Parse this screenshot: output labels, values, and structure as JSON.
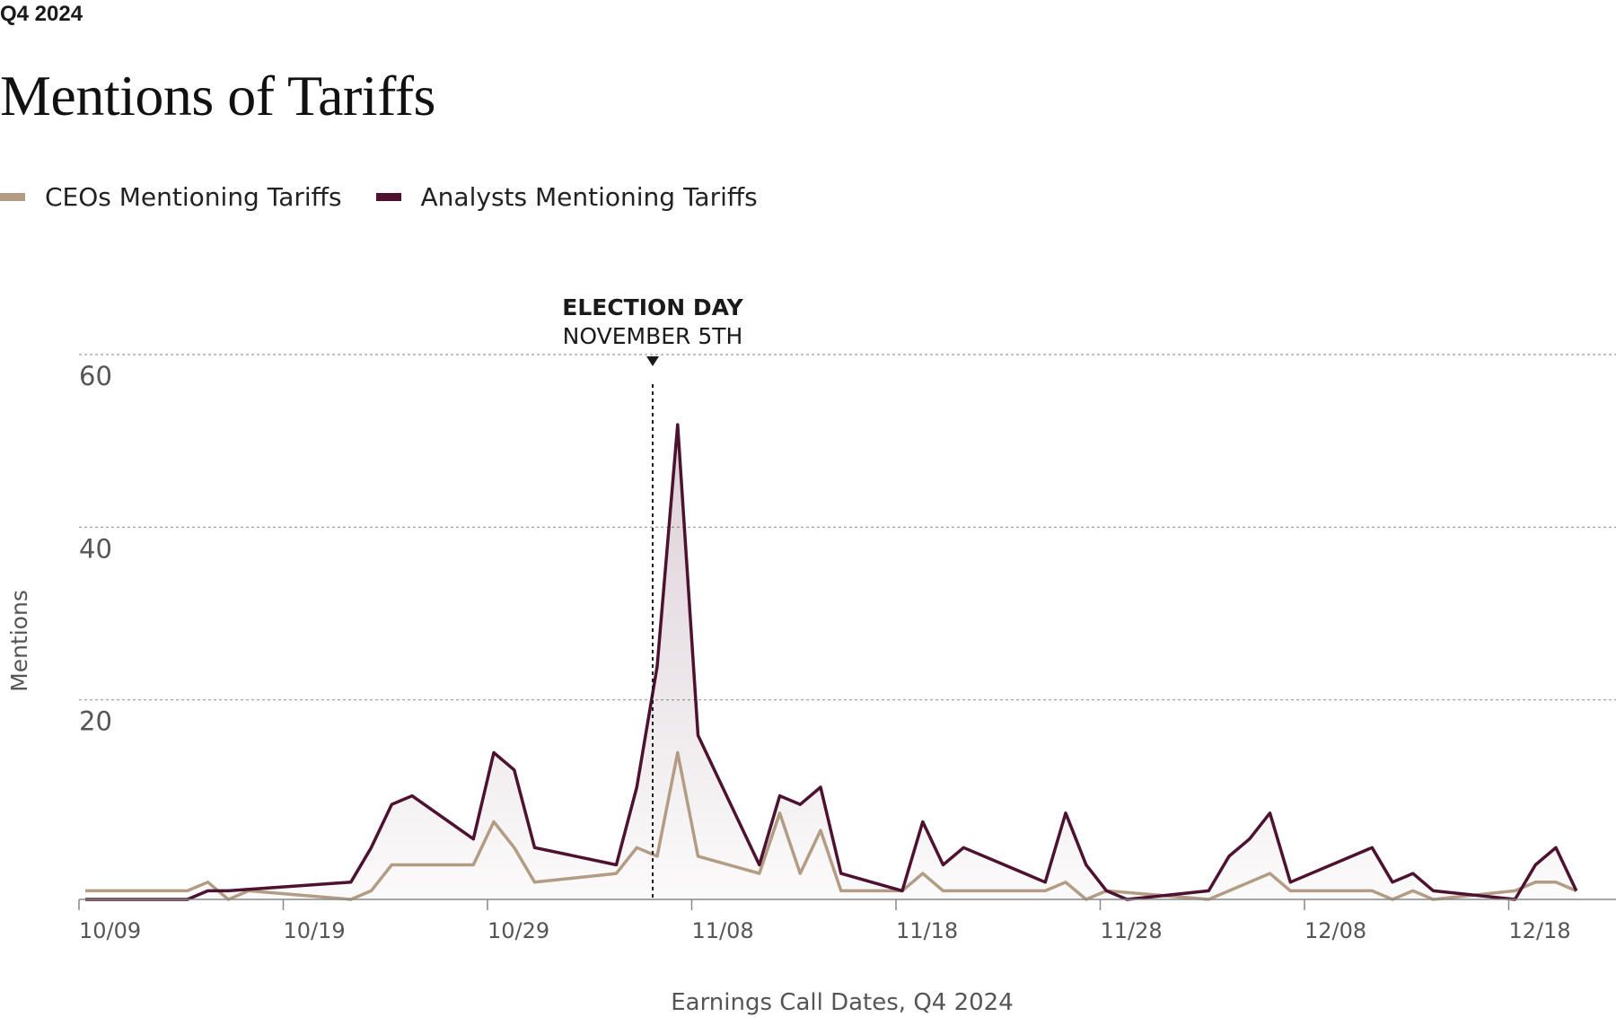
{
  "header": {
    "eyebrow": "Q4 2024",
    "title": "Mentions of Tariffs"
  },
  "legend": [
    {
      "label": "CEOs Mentioning Tariffs",
      "color": "#b39c84"
    },
    {
      "label": "Analysts Mentioning Tariffs",
      "color": "#4d1230"
    }
  ],
  "annotation": {
    "title": "ELECTION DAY",
    "subtitle": "NOVEMBER 5TH",
    "date": "2024-11-05"
  },
  "chart_data": {
    "type": "line",
    "xlabel": "Earnings Call Dates, Q4 2024",
    "ylabel": "Mentions",
    "ylim": [
      0,
      60
    ],
    "yticks": [
      20,
      40,
      60
    ],
    "xticks": [
      "10/09",
      "10/19",
      "10/29",
      "11/08",
      "11/18",
      "11/28",
      "12/08",
      "12/18"
    ],
    "grid": "horizontal dotted",
    "legend_position": "top-left",
    "series": [
      {
        "name": "Analysts Mentioning Tariffs",
        "color": "#4d1230",
        "x": [
          "2024-10-09",
          "2024-10-14",
          "2024-10-15",
          "2024-10-16",
          "2024-10-22",
          "2024-10-23",
          "2024-10-24",
          "2024-10-25",
          "2024-10-28",
          "2024-10-29",
          "2024-10-30",
          "2024-10-31",
          "2024-11-04",
          "2024-11-05",
          "2024-11-06",
          "2024-11-07",
          "2024-11-08",
          "2024-11-11",
          "2024-11-12",
          "2024-11-13",
          "2024-11-14",
          "2024-11-15",
          "2024-11-18",
          "2024-11-19",
          "2024-11-20",
          "2024-11-21",
          "2024-11-25",
          "2024-11-26",
          "2024-11-27",
          "2024-11-28",
          "2024-11-29",
          "2024-12-03",
          "2024-12-04",
          "2024-12-05",
          "2024-12-06",
          "2024-12-07",
          "2024-12-11",
          "2024-12-12",
          "2024-12-13",
          "2024-12-14",
          "2024-12-18",
          "2024-12-19",
          "2024-12-20",
          "2024-12-21"
        ],
        "y": [
          0,
          0,
          1,
          1,
          2,
          6,
          11,
          12,
          7,
          17,
          15,
          6,
          4,
          13,
          27,
          55,
          19,
          4,
          12,
          11,
          13,
          3,
          1,
          9,
          4,
          6,
          2,
          10,
          4,
          1,
          0,
          1,
          5,
          7,
          10,
          2,
          6,
          2,
          3,
          1,
          0,
          4,
          6,
          1
        ]
      },
      {
        "name": "CEOs Mentioning Tariffs",
        "color": "#b39c84",
        "x": [
          "2024-10-09",
          "2024-10-14",
          "2024-10-15",
          "2024-10-16",
          "2024-10-17",
          "2024-10-22",
          "2024-10-23",
          "2024-10-24",
          "2024-10-28",
          "2024-10-29",
          "2024-10-30",
          "2024-10-31",
          "2024-11-04",
          "2024-11-05",
          "2024-11-06",
          "2024-11-07",
          "2024-11-08",
          "2024-11-11",
          "2024-11-12",
          "2024-11-13",
          "2024-11-14",
          "2024-11-15",
          "2024-11-18",
          "2024-11-19",
          "2024-11-20",
          "2024-11-25",
          "2024-11-26",
          "2024-11-27",
          "2024-11-28",
          "2024-12-03",
          "2024-12-04",
          "2024-12-06",
          "2024-12-07",
          "2024-12-11",
          "2024-12-12",
          "2024-12-13",
          "2024-12-14",
          "2024-12-18",
          "2024-12-19",
          "2024-12-20",
          "2024-12-21"
        ],
        "y": [
          1,
          1,
          2,
          0,
          1,
          0,
          1,
          4,
          4,
          9,
          6,
          2,
          3,
          6,
          5,
          17,
          5,
          3,
          10,
          3,
          8,
          1,
          1,
          3,
          1,
          1,
          2,
          0,
          1,
          0,
          1,
          3,
          1,
          1,
          0,
          1,
          0,
          1,
          2,
          2,
          1
        ]
      }
    ]
  }
}
